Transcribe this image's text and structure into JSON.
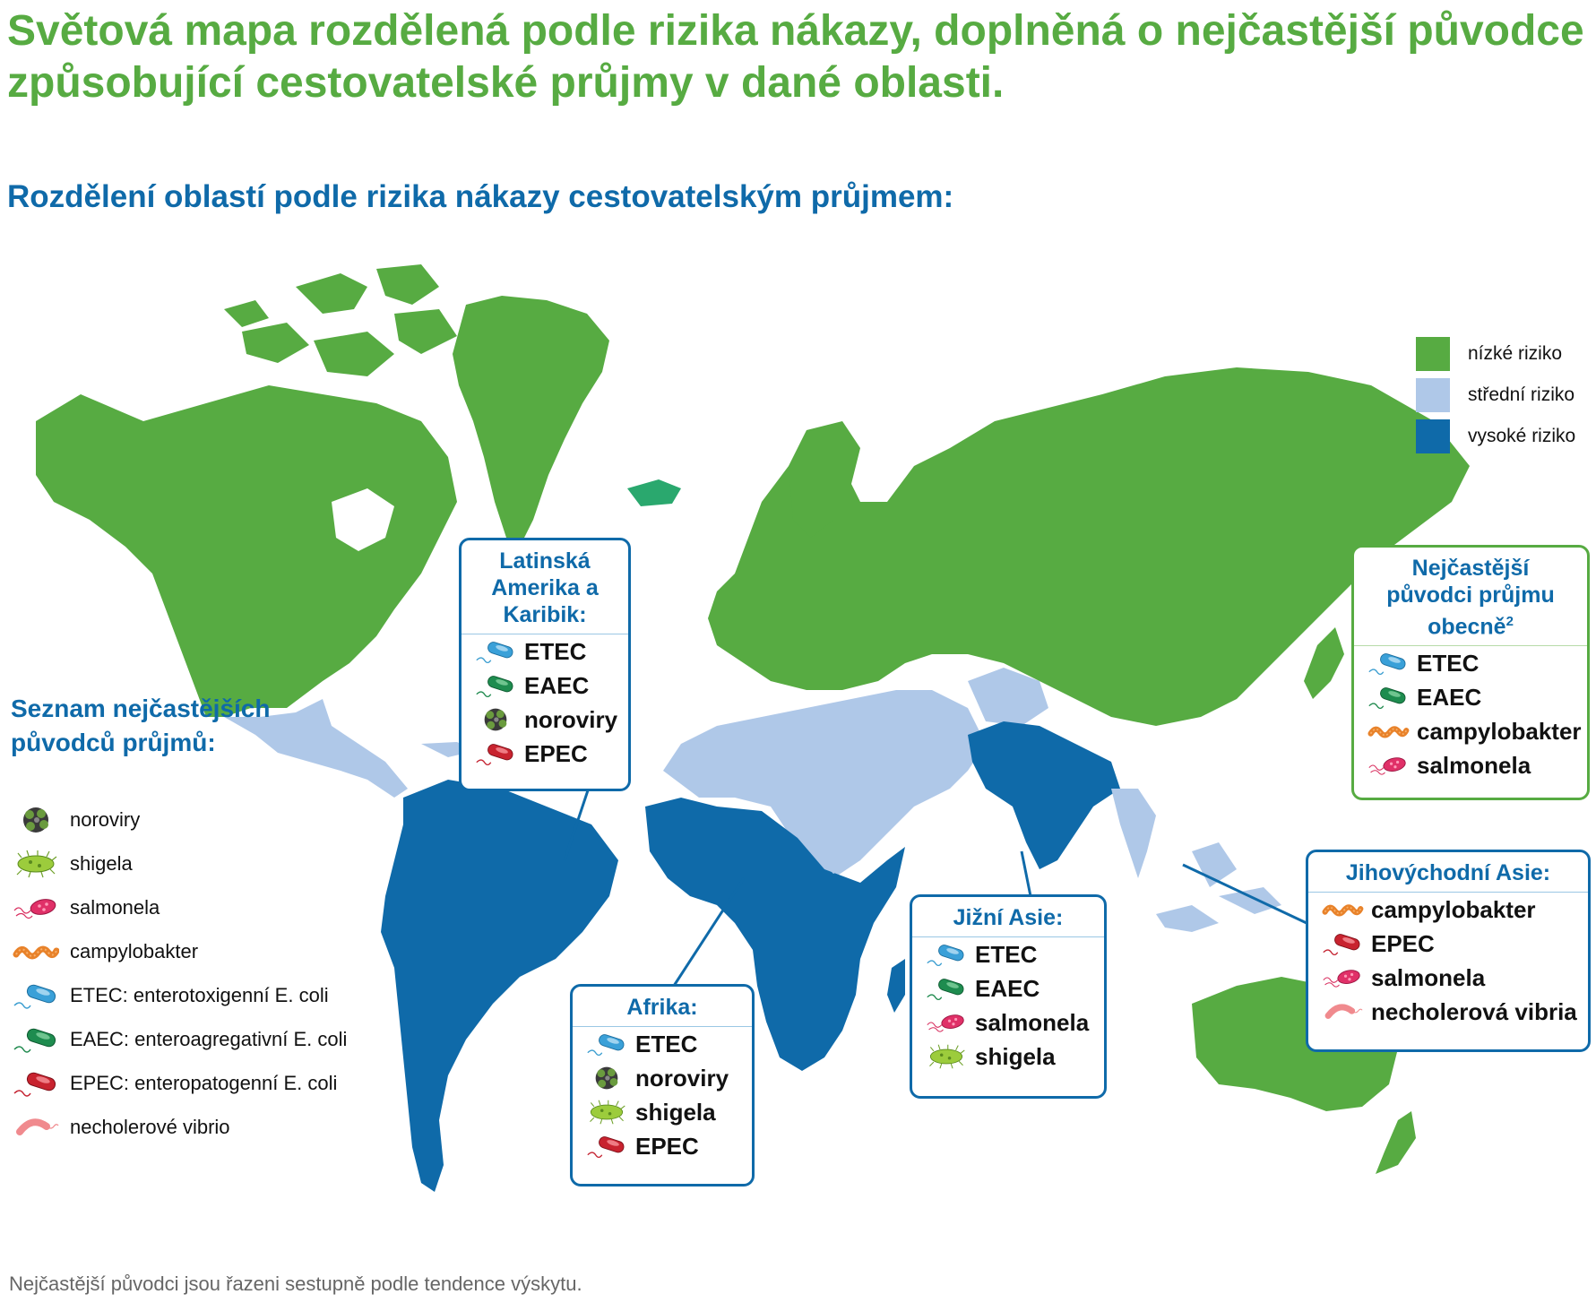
{
  "title": "Světová mapa rozdělená podle rizika nákazy, doplněná o nejčastější původce způsobující cestovatelské průjmy v dané oblasti.",
  "subtitle": "Rozdělení oblastí podle rizika nákazy cestovatelským průjmem:",
  "colors": {
    "green": "#57ab42",
    "light_blue": "#afc8e8",
    "dark_blue": "#0f6aa9",
    "iceland": "#2aa86e",
    "border": "#ffffff"
  },
  "risk_legend": [
    {
      "label": "nízké riziko",
      "color": "#57ab42"
    },
    {
      "label": "střední riziko",
      "color": "#afc8e8"
    },
    {
      "label": "vysoké riziko",
      "color": "#0f6aa9"
    }
  ],
  "pathogen_legend": {
    "heading": "Seznam nejčastějších původců průjmů:",
    "items": [
      {
        "icon": "norovirus-icon",
        "label": "noroviry"
      },
      {
        "icon": "shigella-icon",
        "label": "shigela"
      },
      {
        "icon": "salmonella-icon",
        "label": "salmonela"
      },
      {
        "icon": "campylobacter-icon",
        "label": "campylobakter"
      },
      {
        "icon": "etec-icon",
        "label": "ETEC: enterotoxigenní E. coli"
      },
      {
        "icon": "eaec-icon",
        "label": "EAEC: enteroagregativní E. coli"
      },
      {
        "icon": "epec-icon",
        "label": "EPEC: enteropatogenní E. coli"
      },
      {
        "icon": "vibrio-icon",
        "label": "necholerové vibrio"
      }
    ]
  },
  "regions": {
    "latin_america": {
      "name": "Latinská Amerika a Karibik:",
      "pathogens": [
        "ETEC",
        "EAEC",
        "noroviry",
        "EPEC"
      ],
      "icons": [
        "etec-icon",
        "eaec-icon",
        "norovirus-icon",
        "epec-icon"
      ]
    },
    "africa": {
      "name": "Afrika:",
      "pathogens": [
        "ETEC",
        "noroviry",
        "shigela",
        "EPEC"
      ],
      "icons": [
        "etec-icon",
        "norovirus-icon",
        "shigella-icon",
        "epec-icon"
      ]
    },
    "south_asia": {
      "name": "Jižní Asie:",
      "pathogens": [
        "ETEC",
        "EAEC",
        "salmonela",
        "shigela"
      ],
      "icons": [
        "etec-icon",
        "eaec-icon",
        "salmonella-icon",
        "shigella-icon"
      ]
    },
    "southeast_asia": {
      "name": "Jihovýchodní Asie:",
      "pathogens": [
        "campylobakter",
        "EPEC",
        "salmonela",
        "necholerová vibria"
      ],
      "icons": [
        "campylobacter-icon",
        "epec-icon",
        "salmonella-icon",
        "vibrio-icon"
      ]
    },
    "general": {
      "name": "Nejčastější původci průjmu obecně",
      "superscript": "2",
      "pathogens": [
        "ETEC",
        "EAEC",
        "campylobakter",
        "salmonela"
      ],
      "icons": [
        "etec-icon",
        "eaec-icon",
        "campylobacter-icon",
        "salmonella-icon"
      ]
    }
  },
  "footnote": "Nejčastější původci jsou řazeni sestupně podle tendence výskytu."
}
